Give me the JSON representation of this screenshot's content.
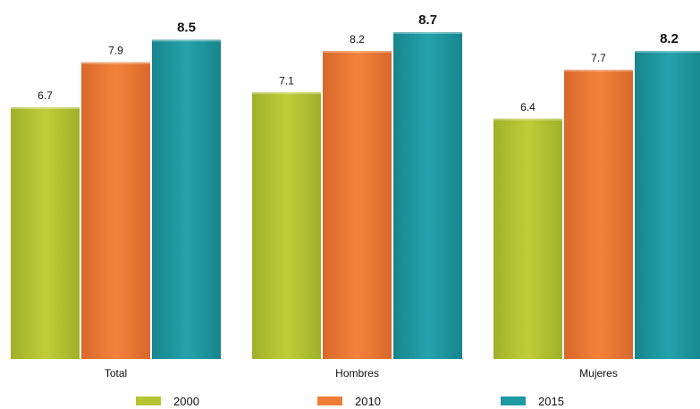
{
  "chart_data": {
    "type": "bar",
    "title": "",
    "xlabel": "",
    "ylabel": "",
    "categories": [
      "Total",
      "Hombres",
      "Mujeres"
    ],
    "series": [
      {
        "name": "2000",
        "values": [
          6.7,
          7.1,
          6.4
        ],
        "labels": [
          "6.7",
          "7.1",
          "6.4"
        ]
      },
      {
        "name": "2010",
        "values": [
          7.9,
          8.2,
          7.7
        ],
        "labels": [
          "7.9",
          "8.2",
          "7.7"
        ]
      },
      {
        "name": "2015",
        "values": [
          8.5,
          8.7,
          8.2
        ],
        "labels": [
          "8.5",
          "8.7",
          "8.2"
        ]
      }
    ],
    "ylim": [
      0,
      8.7
    ],
    "grid": false,
    "legend_position": "bottom",
    "colors": {
      "2000": "#b5c531",
      "2010": "#ef7d36",
      "2015": "#1f9aa3"
    }
  }
}
